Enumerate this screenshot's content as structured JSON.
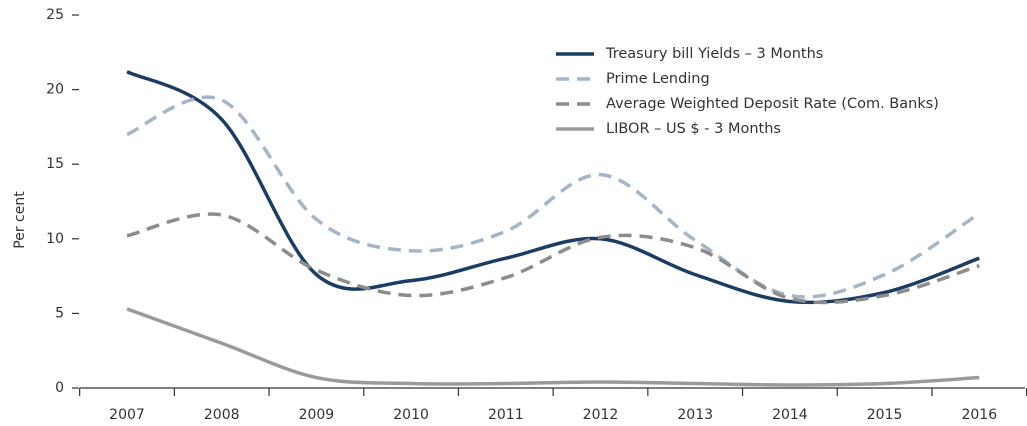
{
  "chart_data": {
    "type": "line",
    "ylabel": "Per cent",
    "categories": [
      "2007",
      "2008",
      "2009",
      "2010",
      "2011",
      "2012",
      "2013",
      "2014",
      "2015",
      "2016"
    ],
    "series": [
      {
        "name": "Treasury bill Yields – 3 Months",
        "color": "#1c3d63",
        "dashed": false,
        "values": [
          21.2,
          18.0,
          7.6,
          7.2,
          8.7,
          10.0,
          7.6,
          5.8,
          6.4,
          8.7
        ]
      },
      {
        "name": "Prime Lending",
        "color": "#a3b5c7",
        "dashed": true,
        "values": [
          17.0,
          19.3,
          11.3,
          9.2,
          10.5,
          14.3,
          9.9,
          6.2,
          7.6,
          11.7
        ]
      },
      {
        "name": "Average Weighted Deposit Rate (Com. Banks)",
        "color": "#8c8c8c",
        "dashed": true,
        "values": [
          10.2,
          11.6,
          7.9,
          6.2,
          7.4,
          10.1,
          9.4,
          6.0,
          6.2,
          8.2
        ]
      },
      {
        "name": "LIBOR – US $ - 3 Months",
        "color": "#9a9a9a",
        "dashed": false,
        "values": [
          5.3,
          3.0,
          0.7,
          0.3,
          0.3,
          0.4,
          0.3,
          0.2,
          0.3,
          0.7
        ]
      }
    ],
    "ylim": [
      0,
      25
    ],
    "yticks": [
      0,
      5,
      10,
      15,
      20,
      25
    ],
    "legend": "upper right"
  }
}
